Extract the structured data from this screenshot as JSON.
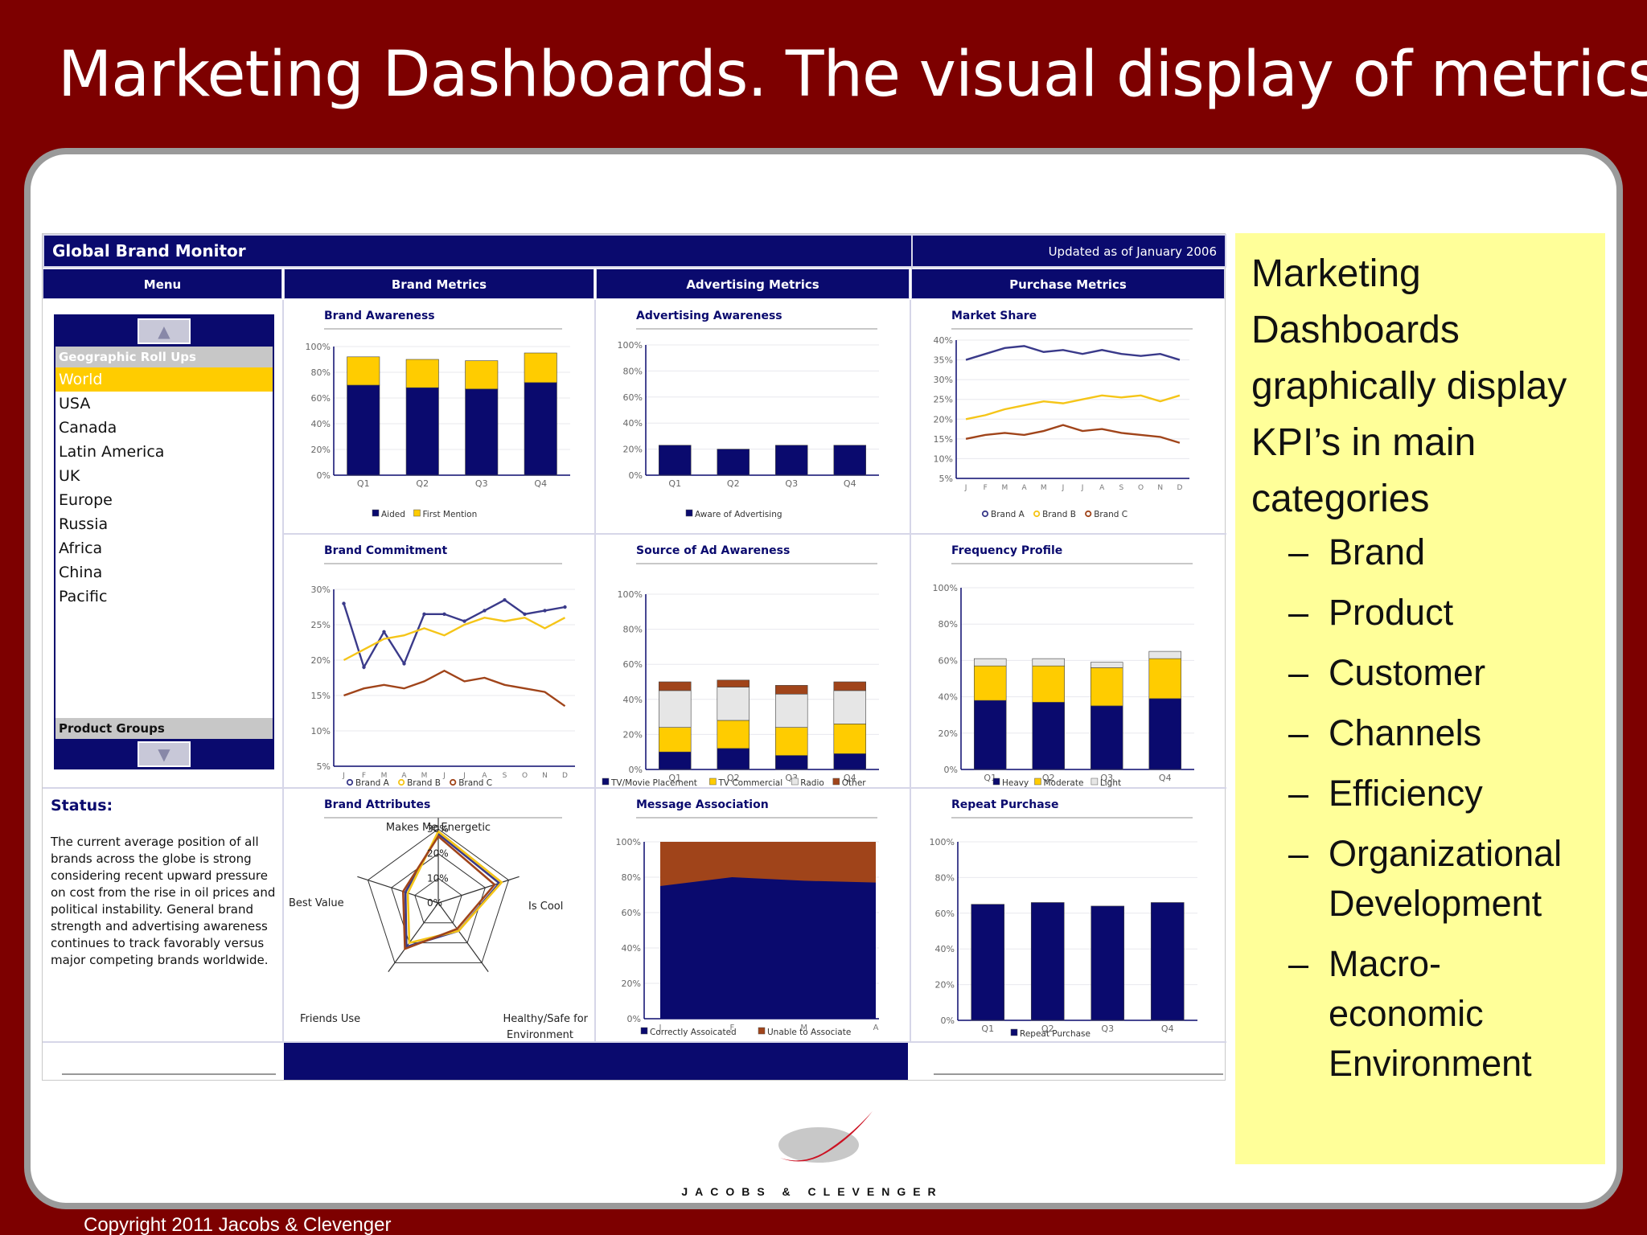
{
  "slide": {
    "title": "Marketing Dashboards. The visual display of metrics.",
    "copyright": "Copyright 2011   Jacobs & Clevenger",
    "logo_text": "JACOBS & CLEVENGER"
  },
  "colors": {
    "navy": "#0a0a6e",
    "gold": "#ffcc00",
    "rust": "#a0441a",
    "maroon": "#7d0000",
    "note_bg": "#ffff99"
  },
  "dashboard": {
    "title": "Global Brand Monitor",
    "updated": "Updated as of January 2006",
    "columns": [
      "Menu",
      "Brand Metrics",
      "Advertising Metrics",
      "Purchase Metrics"
    ],
    "menu": {
      "section1": "Geographic Roll Ups",
      "items": [
        "World",
        "USA",
        "Canada",
        "Latin America",
        "UK",
        "Europe",
        "Russia",
        "Africa",
        "China",
        "Pacific"
      ],
      "selected": "World",
      "section2": "Product Groups",
      "up_icon": "up-arrow-icon",
      "down_icon": "down-arrow-icon"
    },
    "status": {
      "title": "Status:",
      "text": "The current average position of all brands across the globe is strong considering recent upward pressure on cost from the rise in oil prices and political instability. General brand strength and advertising awareness continues to track favorably versus major competing brands worldwide."
    }
  },
  "notes": {
    "lead": "Marketing Dashboards graphically display KPI’s in main categories",
    "items": [
      "Brand",
      "Product",
      "Customer",
      "Channels",
      "Efficiency",
      "Organizational Development",
      "Macro-economic Environment"
    ]
  },
  "chart_data": [
    {
      "id": "brand-awareness",
      "type": "bar",
      "title": "Brand Awareness",
      "categories": [
        "Q1",
        "Q2",
        "Q3",
        "Q4"
      ],
      "series": [
        {
          "name": "Aided",
          "values": [
            70,
            68,
            67,
            72
          ]
        },
        {
          "name": "First Mention",
          "values": [
            22,
            22,
            22,
            23
          ]
        }
      ],
      "ylim": [
        0,
        100
      ],
      "yticks": [
        "100%",
        "80%",
        "60%",
        "40%",
        "20%",
        "0%"
      ],
      "stacked": true,
      "legend": "bottom"
    },
    {
      "id": "advertising-awareness",
      "type": "bar",
      "title": "Advertising Awareness",
      "categories": [
        "Q1",
        "Q2",
        "Q3",
        "Q4"
      ],
      "series": [
        {
          "name": "Aware of Advertising",
          "values": [
            23,
            20,
            23,
            23
          ]
        }
      ],
      "ylim": [
        0,
        100
      ],
      "yticks": [
        "100%",
        "80%",
        "60%",
        "40%",
        "20%",
        "0%"
      ],
      "legend": "bottom"
    },
    {
      "id": "market-share",
      "type": "line",
      "title": "Market Share",
      "categories": [
        "J",
        "F",
        "M",
        "A",
        "M",
        "J",
        "J",
        "A",
        "S",
        "O",
        "N",
        "D"
      ],
      "series": [
        {
          "name": "Brand A",
          "values": [
            35,
            36.5,
            38,
            38.5,
            37,
            37.5,
            36.5,
            37.5,
            36.5,
            36,
            36.5,
            35
          ]
        },
        {
          "name": "Brand B",
          "values": [
            20,
            21,
            22.5,
            23.5,
            24.5,
            24,
            25,
            26,
            25.5,
            26,
            24.5,
            26
          ]
        },
        {
          "name": "Brand C",
          "values": [
            15,
            16,
            16.5,
            16,
            17,
            18.5,
            17,
            17.5,
            16.5,
            16,
            15.5,
            14
          ]
        }
      ],
      "ylim": [
        5,
        40
      ],
      "yticks": [
        "40%",
        "35%",
        "30%",
        "25%",
        "20%",
        "15%",
        "10%",
        "5%"
      ],
      "legend": "bottom"
    },
    {
      "id": "brand-commitment",
      "type": "line",
      "title": "Brand Commitment",
      "categories": [
        "J",
        "F",
        "M",
        "A",
        "M",
        "J",
        "J",
        "A",
        "S",
        "O",
        "N",
        "D"
      ],
      "series": [
        {
          "name": "Brand A",
          "values": [
            28,
            19,
            24,
            19.5,
            26.5,
            26.5,
            25.5,
            27,
            28.5,
            26.5,
            27,
            27.5
          ]
        },
        {
          "name": "Brand B",
          "values": [
            20,
            21.5,
            23,
            23.5,
            24.5,
            23.5,
            25,
            26,
            25.5,
            26,
            24.5,
            26
          ]
        },
        {
          "name": "Brand C",
          "values": [
            15,
            16,
            16.5,
            16,
            17,
            18.5,
            17,
            17.5,
            16.5,
            16,
            15.5,
            13.5
          ]
        }
      ],
      "ylim": [
        5,
        30
      ],
      "yticks": [
        "30%",
        "25%",
        "20%",
        "15%",
        "10%",
        "5%"
      ],
      "legend": "bottom"
    },
    {
      "id": "source-of-ad-awareness",
      "type": "bar",
      "title": "Source of Ad Awareness",
      "categories": [
        "Q1",
        "Q2",
        "Q3",
        "Q4"
      ],
      "series": [
        {
          "name": "TV/Movie Placement",
          "values": [
            10,
            12,
            8,
            9
          ]
        },
        {
          "name": "TV Commercial",
          "values": [
            14,
            16,
            16,
            17
          ]
        },
        {
          "name": "Radio",
          "values": [
            21,
            19,
            19,
            19
          ]
        },
        {
          "name": "Other",
          "values": [
            5,
            4,
            5,
            5
          ]
        }
      ],
      "ylim": [
        0,
        100
      ],
      "yticks": [
        "100%",
        "80%",
        "60%",
        "40%",
        "20%",
        "0%"
      ],
      "stacked": true,
      "legend": "bottom"
    },
    {
      "id": "frequency-profile",
      "type": "bar",
      "title": "Frequency Profile",
      "categories": [
        "Q1",
        "Q2",
        "Q3",
        "Q4"
      ],
      "series": [
        {
          "name": "Heavy",
          "values": [
            38,
            37,
            35,
            39
          ]
        },
        {
          "name": "Moderate",
          "values": [
            19,
            20,
            21,
            22
          ]
        },
        {
          "name": "Light",
          "values": [
            4,
            4,
            3,
            4
          ]
        }
      ],
      "ylim": [
        0,
        100
      ],
      "yticks": [
        "100%",
        "80%",
        "60%",
        "40%",
        "20%",
        "0%"
      ],
      "stacked": true,
      "legend": "bottom"
    },
    {
      "id": "brand-attributes",
      "type": "radar",
      "title": "Brand Attributes",
      "axes": [
        "Makes Me Energetic",
        "Is Cool",
        "Healthy/Safe for Environment",
        "Friends Use",
        "Best Value"
      ],
      "rticks": [
        "30%",
        "20%",
        "10%",
        "0%"
      ],
      "rlim": [
        0,
        30
      ],
      "series": [
        {
          "name": "Brand A",
          "values": [
            28,
            26,
            14,
            22,
            14
          ]
        },
        {
          "name": "Brand B",
          "values": [
            29,
            27,
            14,
            20,
            13
          ]
        },
        {
          "name": "Brand C",
          "values": [
            27,
            24,
            13,
            23,
            15
          ]
        }
      ]
    },
    {
      "id": "message-association",
      "type": "area",
      "title": "Message Association",
      "categories": [
        "J",
        "F",
        "M",
        "A"
      ],
      "series": [
        {
          "name": "Correctly Assoicated",
          "values": [
            75,
            80,
            78,
            77
          ]
        },
        {
          "name": "Unable to Associate",
          "values": [
            25,
            20,
            22,
            23
          ]
        }
      ],
      "ylim": [
        0,
        100
      ],
      "yticks": [
        "100%",
        "80%",
        "60%",
        "40%",
        "20%",
        "0%"
      ],
      "stacked": true,
      "legend": "bottom"
    },
    {
      "id": "repeat-purchase",
      "type": "bar",
      "title": "Repeat Purchase",
      "categories": [
        "Q1",
        "Q2",
        "Q3",
        "Q4"
      ],
      "series": [
        {
          "name": "Repeat Purchase",
          "values": [
            65,
            66,
            64,
            66
          ]
        }
      ],
      "ylim": [
        0,
        100
      ],
      "yticks": [
        "100%",
        "80%",
        "60%",
        "40%",
        "20%",
        "0%"
      ],
      "legend": "bottom"
    }
  ]
}
